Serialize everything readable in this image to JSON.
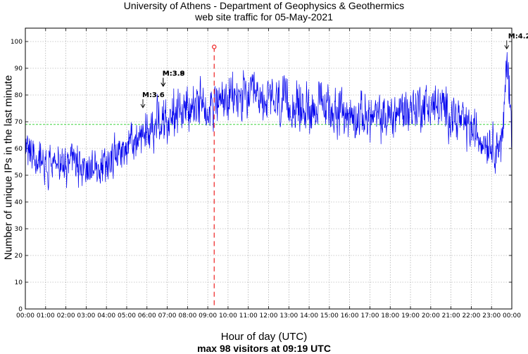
{
  "chart_data": {
    "type": "line",
    "title": "University of Athens - Department of Geophysics & Geothermics",
    "subtitle": "web site traffic for 05-May-2021",
    "xlabel": "Hour of day (UTC)",
    "ylabel": "Number of unique IPs in the last minute",
    "summary": "max 98 visitors at 09:19 UTC",
    "xlim": [
      0,
      24
    ],
    "ylim": [
      0,
      105
    ],
    "x_ticks": [
      "00:00",
      "01:00",
      "02:00",
      "03:00",
      "04:00",
      "05:00",
      "06:00",
      "07:00",
      "08:00",
      "09:00",
      "10:00",
      "11:00",
      "12:00",
      "13:00",
      "14:00",
      "15:00",
      "16:00",
      "17:00",
      "18:00",
      "19:00",
      "20:00",
      "21:00",
      "22:00",
      "23:00",
      "00:00"
    ],
    "y_ticks": [
      0,
      10,
      20,
      30,
      40,
      50,
      60,
      70,
      80,
      90,
      100
    ],
    "grid": true,
    "series_color": "#0000ee",
    "average_line": {
      "value": 69,
      "color": "#22cc22"
    },
    "max_marker": {
      "time": "09:19",
      "hour": 9.317,
      "value": 98,
      "color": "#ee2222"
    },
    "trend": [
      [
        0.0,
        61
      ],
      [
        0.5,
        57
      ],
      [
        1.0,
        55
      ],
      [
        1.5,
        54
      ],
      [
        2.0,
        54
      ],
      [
        2.5,
        53
      ],
      [
        3.0,
        52
      ],
      [
        3.5,
        53
      ],
      [
        4.0,
        55
      ],
      [
        4.5,
        58
      ],
      [
        5.0,
        61
      ],
      [
        5.5,
        63
      ],
      [
        6.0,
        66
      ],
      [
        6.5,
        70
      ],
      [
        7.0,
        72
      ],
      [
        7.5,
        74
      ],
      [
        8.0,
        75
      ],
      [
        8.5,
        76
      ],
      [
        9.0,
        77
      ],
      [
        9.5,
        77
      ],
      [
        10.0,
        78
      ],
      [
        10.5,
        79
      ],
      [
        11.0,
        79
      ],
      [
        11.5,
        78
      ],
      [
        12.0,
        78
      ],
      [
        12.5,
        77
      ],
      [
        13.0,
        76
      ],
      [
        13.5,
        75
      ],
      [
        14.0,
        75
      ],
      [
        14.5,
        76
      ],
      [
        15.0,
        75
      ],
      [
        15.5,
        74
      ],
      [
        16.0,
        72
      ],
      [
        16.5,
        72
      ],
      [
        17.0,
        72
      ],
      [
        17.5,
        71
      ],
      [
        18.0,
        72
      ],
      [
        18.5,
        74
      ],
      [
        19.0,
        75
      ],
      [
        19.5,
        76
      ],
      [
        20.0,
        76
      ],
      [
        20.5,
        75
      ],
      [
        21.0,
        73
      ],
      [
        21.5,
        70
      ],
      [
        22.0,
        67
      ],
      [
        22.5,
        64
      ],
      [
        23.0,
        62
      ],
      [
        23.3,
        61
      ],
      [
        23.55,
        63
      ],
      [
        23.7,
        85
      ],
      [
        23.78,
        95
      ],
      [
        23.85,
        86
      ],
      [
        24.0,
        63
      ]
    ],
    "earthquakes": [
      {
        "label": "M:3.6",
        "hour": 5.8,
        "value": 75
      },
      {
        "label": "M:3.8",
        "hour": 6.8,
        "value": 83
      },
      {
        "label": "M:3.9",
        "hour": 6.8,
        "value": 83
      },
      {
        "label": "M:4.2",
        "hour": 23.75,
        "value": 97
      }
    ]
  }
}
